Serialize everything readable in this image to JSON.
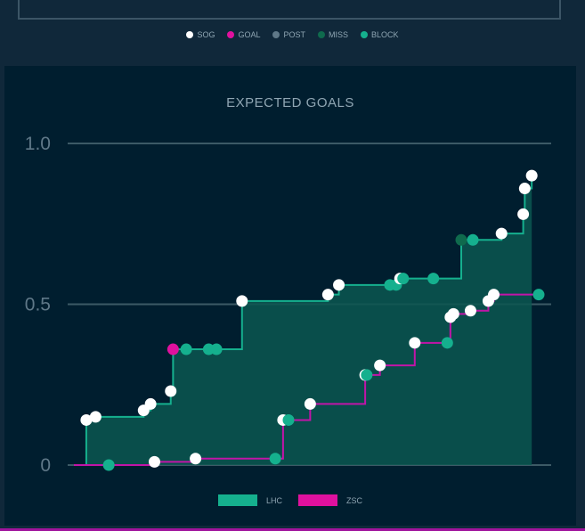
{
  "shot_legend": [
    {
      "label": "SOG",
      "color": "#ffffff"
    },
    {
      "label": "GOAL",
      "color": "#e0119e"
    },
    {
      "label": "POST",
      "color": "#5f7888"
    },
    {
      "label": "MISS",
      "color": "#0f6a4d"
    },
    {
      "label": "BLOCK",
      "color": "#15b08e"
    }
  ],
  "chart_data": {
    "type": "line",
    "title": "EXPECTED GOALS",
    "ylim": [
      0,
      1.0
    ],
    "xlim": [
      0,
      60
    ],
    "y_ticks": [
      "0",
      "0.5",
      "1.0"
    ],
    "step": true,
    "series": [
      {
        "name": "LHC",
        "color": "#15b08e",
        "fill": "#0a5750",
        "points": [
          {
            "x": 1.6,
            "y": 0.14,
            "type": "SOG"
          },
          {
            "x": 2.8,
            "y": 0.15,
            "type": "SOG"
          },
          {
            "x": 9.0,
            "y": 0.17,
            "type": "SOG"
          },
          {
            "x": 9.9,
            "y": 0.19,
            "type": "SOG"
          },
          {
            "x": 12.5,
            "y": 0.23,
            "type": "SOG"
          },
          {
            "x": 12.8,
            "y": 0.36,
            "type": "GOAL"
          },
          {
            "x": 14.5,
            "y": 0.36,
            "type": "BLOCK"
          },
          {
            "x": 17.4,
            "y": 0.36,
            "type": "BLOCK"
          },
          {
            "x": 18.4,
            "y": 0.36,
            "type": "BLOCK"
          },
          {
            "x": 21.7,
            "y": 0.51,
            "type": "SOG"
          },
          {
            "x": 32.8,
            "y": 0.53,
            "type": "SOG"
          },
          {
            "x": 34.2,
            "y": 0.56,
            "type": "SOG"
          },
          {
            "x": 40.8,
            "y": 0.56,
            "type": "BLOCK"
          },
          {
            "x": 41.6,
            "y": 0.56,
            "type": "BLOCK"
          },
          {
            "x": 42.1,
            "y": 0.58,
            "type": "SOG"
          },
          {
            "x": 42.5,
            "y": 0.58,
            "type": "BLOCK"
          },
          {
            "x": 46.4,
            "y": 0.58,
            "type": "BLOCK"
          },
          {
            "x": 50.0,
            "y": 0.7,
            "type": "MISS"
          },
          {
            "x": 51.5,
            "y": 0.7,
            "type": "BLOCK"
          },
          {
            "x": 55.2,
            "y": 0.72,
            "type": "SOG"
          },
          {
            "x": 58.0,
            "y": 0.78,
            "type": "SOG"
          },
          {
            "x": 58.2,
            "y": 0.86,
            "type": "SOG"
          },
          {
            "x": 59.1,
            "y": 0.9,
            "type": "SOG"
          }
        ]
      },
      {
        "name": "ZSC",
        "color": "#c214a8",
        "fill": "none",
        "points": [
          {
            "x": 4.5,
            "y": 0.0,
            "type": "BLOCK"
          },
          {
            "x": 10.4,
            "y": 0.01,
            "type": "SOG"
          },
          {
            "x": 15.7,
            "y": 0.02,
            "type": "SOG"
          },
          {
            "x": 26.0,
            "y": 0.02,
            "type": "BLOCK"
          },
          {
            "x": 27.0,
            "y": 0.14,
            "type": "SOG"
          },
          {
            "x": 27.7,
            "y": 0.14,
            "type": "BLOCK"
          },
          {
            "x": 30.5,
            "y": 0.19,
            "type": "SOG"
          },
          {
            "x": 37.6,
            "y": 0.28,
            "type": "SOG"
          },
          {
            "x": 37.8,
            "y": 0.28,
            "type": "BLOCK"
          },
          {
            "x": 39.5,
            "y": 0.31,
            "type": "SOG"
          },
          {
            "x": 44.0,
            "y": 0.38,
            "type": "SOG"
          },
          {
            "x": 48.2,
            "y": 0.38,
            "type": "BLOCK"
          },
          {
            "x": 48.6,
            "y": 0.46,
            "type": "SOG"
          },
          {
            "x": 49.0,
            "y": 0.47,
            "type": "SOG"
          },
          {
            "x": 51.2,
            "y": 0.48,
            "type": "SOG"
          },
          {
            "x": 53.5,
            "y": 0.51,
            "type": "SOG"
          },
          {
            "x": 54.2,
            "y": 0.53,
            "type": "SOG"
          },
          {
            "x": 62.5,
            "y": 0.53,
            "type": "BLOCK"
          }
        ]
      }
    ],
    "legend": [
      {
        "label": "LHC",
        "color": "#15b08e"
      },
      {
        "label": "ZSC",
        "color": "#e0119e"
      }
    ]
  }
}
